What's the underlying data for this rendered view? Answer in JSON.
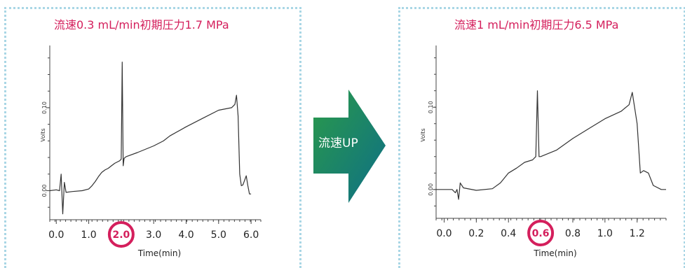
{
  "arrow": {
    "label": "流速UP",
    "colors": [
      "#2a9a4a",
      "#0e6f86"
    ]
  },
  "accent_color": "#d41f5c",
  "frame_color": "#a9d6e5",
  "chart_data": [
    {
      "type": "line",
      "title": "流速0.3 mL/min初期圧力1.7 MPa",
      "xlabel": "Time(min)",
      "ylabel": "Volts",
      "xlim": [
        -0.2,
        6.3
      ],
      "ylim": [
        -0.035,
        0.175
      ],
      "xticks": [
        0.0,
        1.0,
        2.0,
        3.0,
        4.0,
        5.0,
        6.0
      ],
      "xtick_labels": [
        "0.0",
        "1.0",
        "2.0",
        "3.0",
        "4.0",
        "5.0",
        "6.0"
      ],
      "yticks": [
        0.0,
        0.1
      ],
      "ytick_labels": [
        "0.00",
        "0.10"
      ],
      "highlight": {
        "x": 2.0,
        "label": "2.0"
      },
      "series": [
        {
          "x": [
            -0.2,
            0.0,
            0.1,
            0.15,
            0.2,
            0.25,
            0.3,
            0.5,
            0.8,
            1.0,
            1.1,
            1.2,
            1.3,
            1.4,
            1.5,
            1.6,
            1.7,
            1.8,
            1.9,
            1.95,
            2.0,
            2.03,
            2.06,
            2.09,
            2.15,
            2.5,
            3.0,
            3.3,
            3.5,
            4.0,
            4.5,
            5.0,
            5.4,
            5.5,
            5.55,
            5.6,
            5.65,
            5.7,
            5.75,
            5.85,
            5.9,
            5.95,
            6.0
          ],
          "y": [
            0.0,
            0.001,
            0.0,
            0.02,
            -0.028,
            0.01,
            -0.002,
            -0.001,
            0.0,
            0.002,
            0.006,
            0.011,
            0.017,
            0.022,
            0.025,
            0.027,
            0.03,
            0.033,
            0.035,
            0.036,
            0.038,
            0.155,
            0.03,
            0.039,
            0.041,
            0.046,
            0.054,
            0.06,
            0.066,
            0.077,
            0.087,
            0.097,
            0.1,
            0.104,
            0.115,
            0.09,
            0.02,
            0.006,
            0.007,
            0.018,
            0.006,
            -0.004,
            -0.004
          ]
        }
      ]
    },
    {
      "type": "line",
      "title": "流速1 mL/min初期圧力6.5 MPa",
      "xlabel": "Time(min)",
      "ylabel": "Volts",
      "xlim": [
        -0.05,
        1.38
      ],
      "ylim": [
        -0.035,
        0.175
      ],
      "xticks": [
        0.0,
        0.2,
        0.4,
        0.6,
        0.8,
        1.0,
        1.2
      ],
      "xtick_labels": [
        "0.0",
        "0.2",
        "0.4",
        "0.6",
        "0.8",
        "1.0",
        "1.2"
      ],
      "yticks": [
        0.0,
        0.1
      ],
      "ytick_labels": [
        "0.00",
        "0.10"
      ],
      "highlight": {
        "x": 0.6,
        "label": "0.6"
      },
      "series": [
        {
          "x": [
            -0.05,
            0.0,
            0.05,
            0.07,
            0.08,
            0.09,
            0.1,
            0.12,
            0.2,
            0.3,
            0.35,
            0.4,
            0.45,
            0.5,
            0.55,
            0.57,
            0.58,
            0.59,
            0.6,
            0.7,
            0.8,
            0.9,
            1.0,
            1.1,
            1.15,
            1.17,
            1.2,
            1.22,
            1.24,
            1.27,
            1.3,
            1.35,
            1.38
          ],
          "y": [
            0.0,
            0.0,
            0.0,
            -0.004,
            0.0,
            -0.012,
            0.008,
            0.002,
            -0.001,
            0.001,
            0.008,
            0.02,
            0.026,
            0.033,
            0.036,
            0.04,
            0.12,
            0.04,
            0.04,
            0.048,
            0.062,
            0.074,
            0.086,
            0.095,
            0.103,
            0.118,
            0.08,
            0.02,
            0.023,
            0.02,
            0.005,
            0.0,
            0.0
          ]
        }
      ]
    }
  ]
}
